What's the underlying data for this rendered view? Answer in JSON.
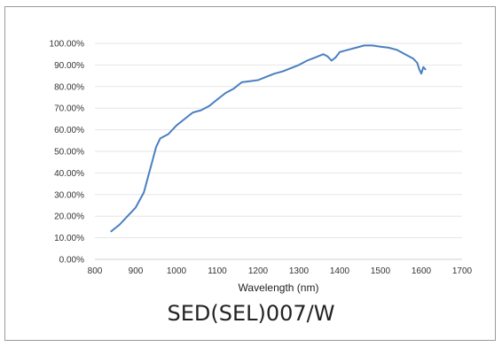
{
  "caption": "SED(SEL)007/W",
  "chart_data": {
    "type": "line",
    "xlabel": "Wavelength (nm)",
    "ylabel": "",
    "xlim": [
      800,
      1700
    ],
    "ylim": [
      0,
      100
    ],
    "x_ticks": [
      800,
      900,
      1000,
      1100,
      1200,
      1300,
      1400,
      1500,
      1600,
      1700
    ],
    "y_ticks": [
      "0.00%",
      "10.00%",
      "20.00%",
      "30.00%",
      "40.00%",
      "50.00%",
      "60.00%",
      "70.00%",
      "80.00%",
      "90.00%",
      "100.00%"
    ],
    "grid": true,
    "series_color": "#4a7fc0",
    "series": [
      {
        "x": [
          840,
          860,
          880,
          900,
          920,
          930,
          940,
          950,
          960,
          980,
          1000,
          1020,
          1040,
          1060,
          1080,
          1100,
          1120,
          1140,
          1160,
          1180,
          1200,
          1220,
          1240,
          1260,
          1280,
          1300,
          1320,
          1340,
          1360,
          1370,
          1380,
          1390,
          1400,
          1420,
          1440,
          1460,
          1480,
          1500,
          1520,
          1540,
          1560,
          1580,
          1590,
          1595,
          1600,
          1605,
          1610
        ],
        "y": [
          13,
          16,
          20,
          24,
          31,
          38,
          45,
          52,
          56,
          58,
          62,
          65,
          68,
          69,
          71,
          74,
          77,
          79,
          82,
          82.5,
          83,
          84.5,
          86,
          87,
          88.5,
          90,
          92,
          93.5,
          95,
          94,
          92,
          93.5,
          96,
          97,
          98,
          99,
          99,
          98.5,
          98,
          97,
          95,
          93,
          91,
          88,
          86,
          89,
          88
        ]
      }
    ]
  }
}
